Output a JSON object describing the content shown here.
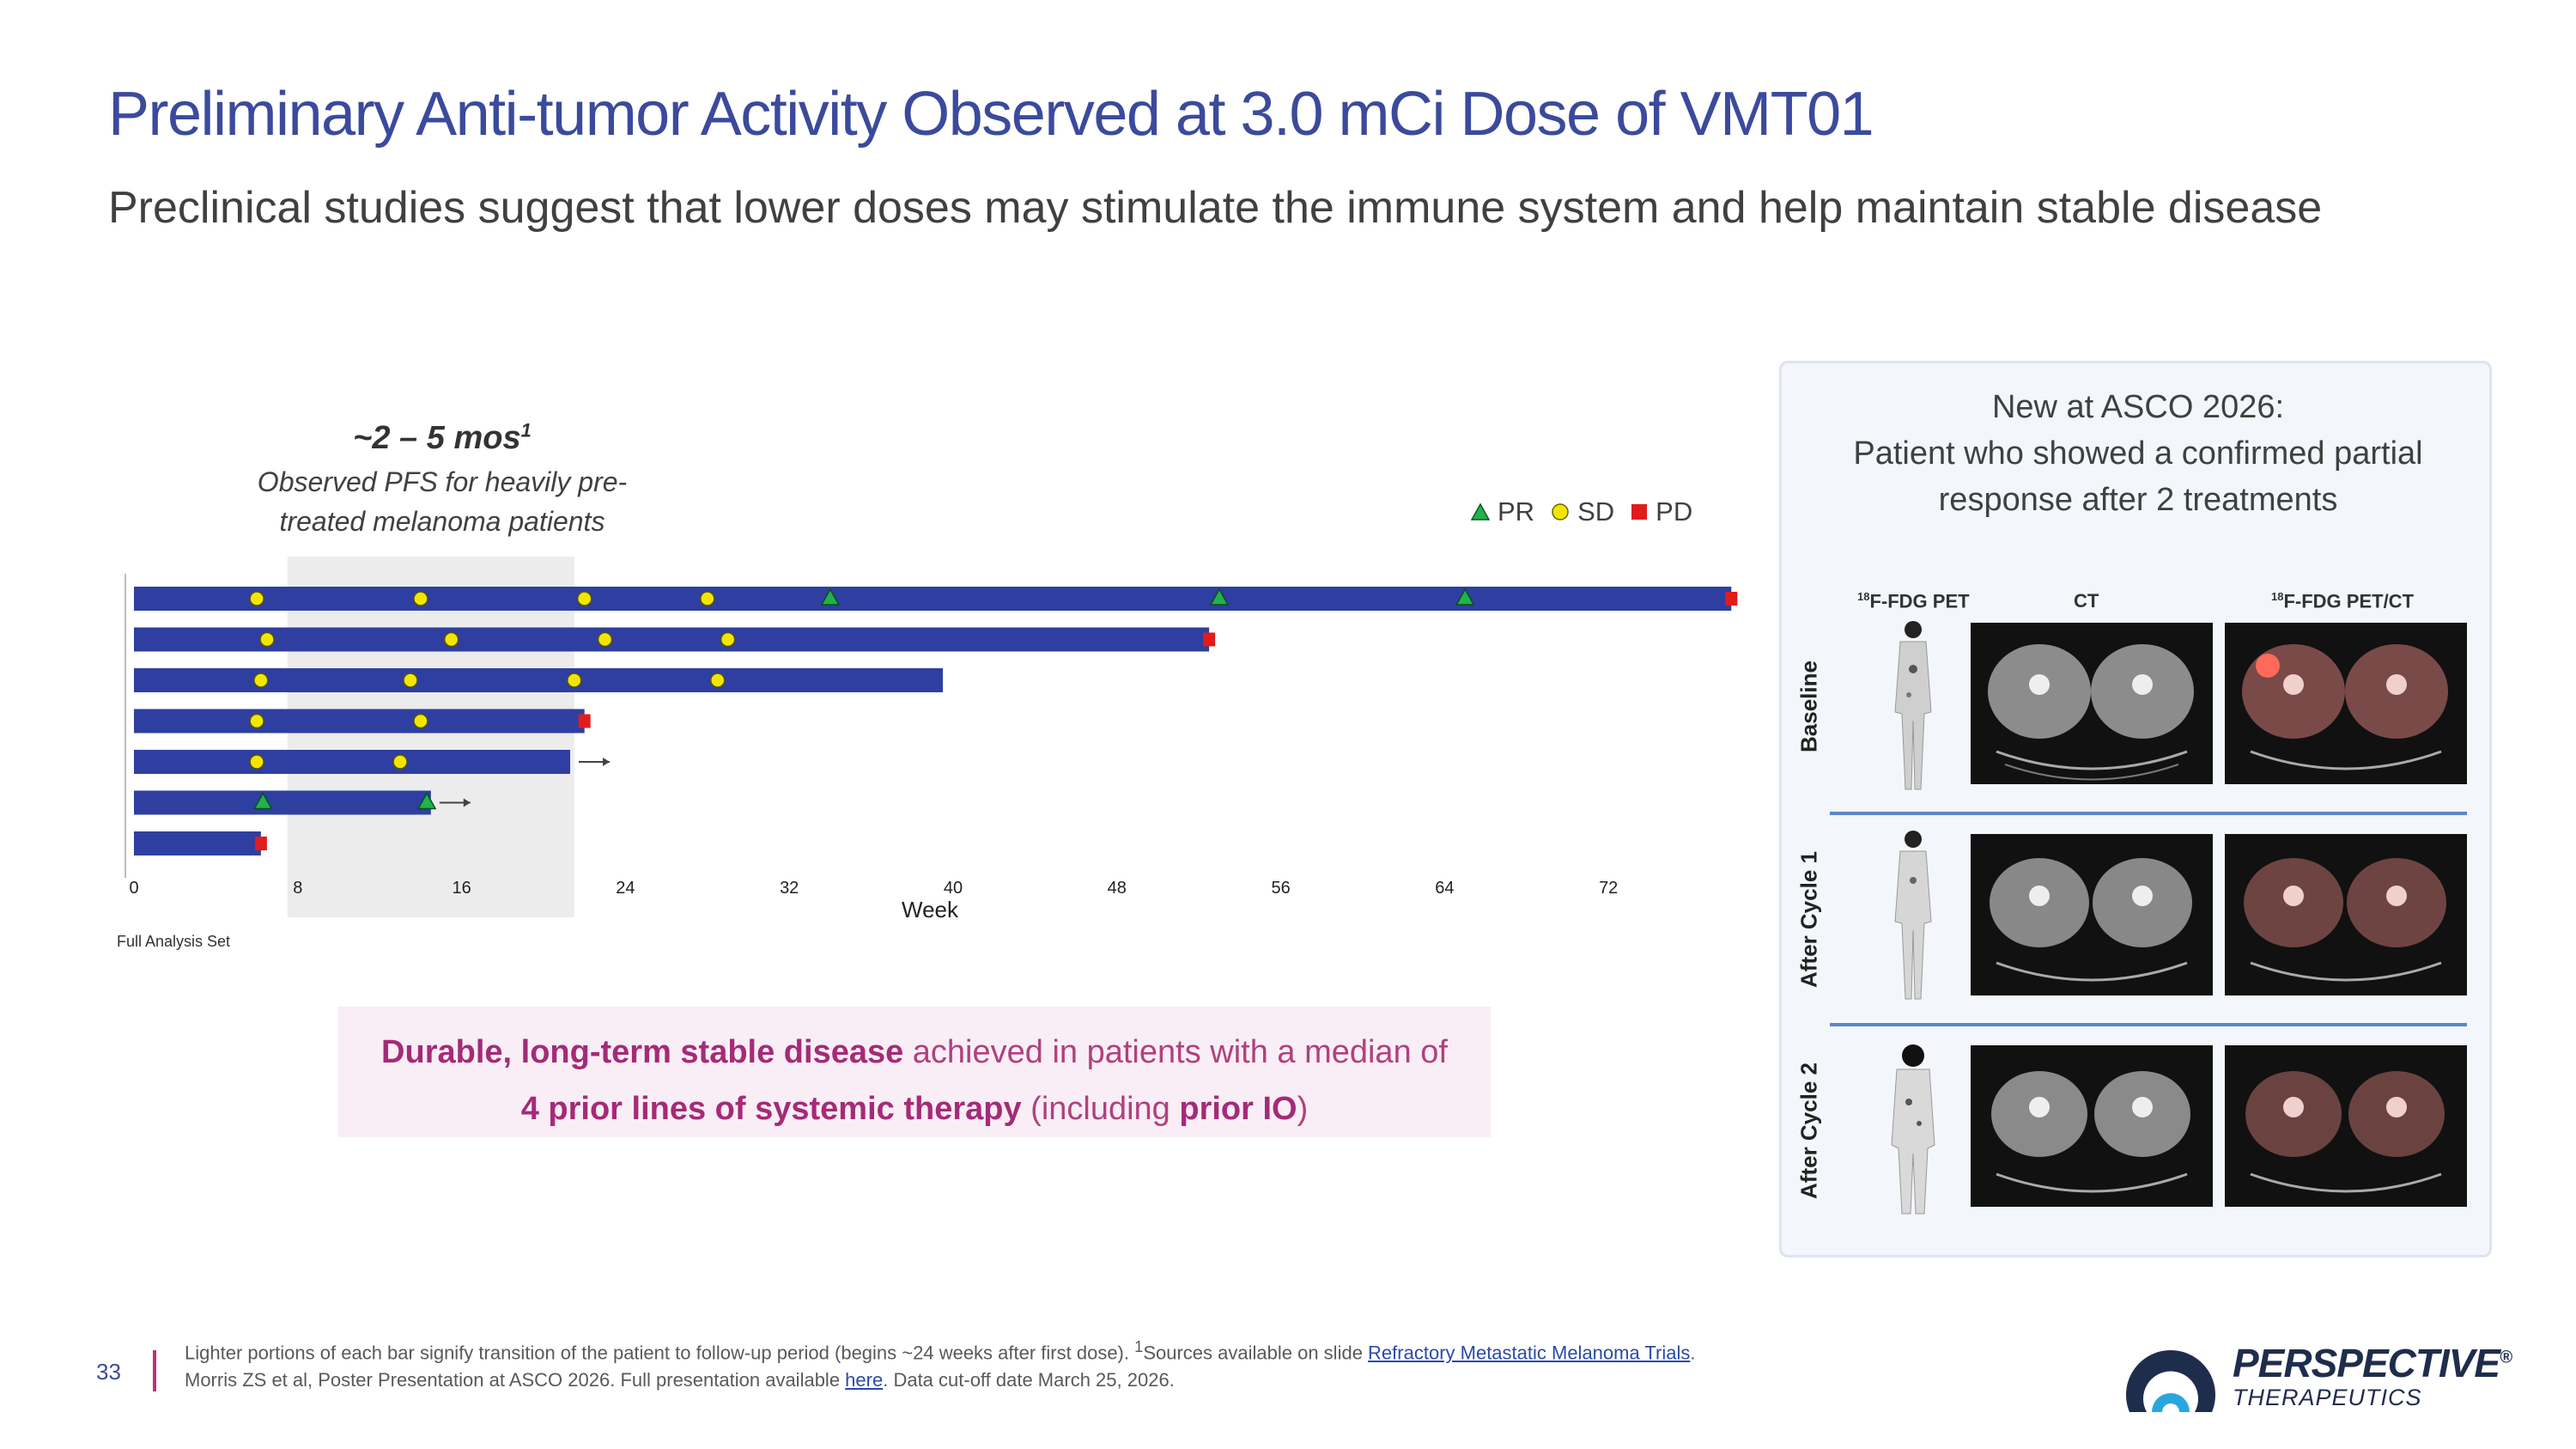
{
  "header": {
    "title": "Preliminary Anti-tumor Activity Observed at 3.0 mCi Dose of VMT01",
    "subtitle": "Preclinical studies suggest that lower doses may stimulate the immune system and help maintain stable disease"
  },
  "pfs_note": {
    "range": "~2 – 5 mos",
    "range_sup": "1",
    "line1": "Observed PFS for heavily pre-",
    "line2": "treated melanoma patients"
  },
  "legend": {
    "items": [
      {
        "label": "PR",
        "shape": "triangle",
        "color": "#22b14c"
      },
      {
        "label": "SD",
        "shape": "circle",
        "color": "#f2e600"
      },
      {
        "label": "PD",
        "shape": "square",
        "color": "#e21b1b"
      }
    ]
  },
  "chart_data": {
    "type": "swimmer",
    "xlabel": "Week",
    "x_ticks": [
      0,
      8,
      16,
      24,
      32,
      40,
      48,
      56,
      64,
      72
    ],
    "xlim": [
      0,
      78
    ],
    "pfs_band_weeks": [
      7.5,
      21.5
    ],
    "bar_color": "#2e3fa1",
    "patients": [
      {
        "end": 78,
        "arrow": false,
        "events": [
          {
            "t": 6,
            "type": "SD"
          },
          {
            "t": 14,
            "type": "SD"
          },
          {
            "t": 22,
            "type": "SD"
          },
          {
            "t": 28,
            "type": "SD"
          },
          {
            "t": 34,
            "type": "PR"
          },
          {
            "t": 53,
            "type": "PR"
          },
          {
            "t": 65,
            "type": "PR"
          },
          {
            "t": 78,
            "type": "PD"
          }
        ]
      },
      {
        "end": 52.5,
        "arrow": false,
        "events": [
          {
            "t": 6.5,
            "type": "SD"
          },
          {
            "t": 15.5,
            "type": "SD"
          },
          {
            "t": 23,
            "type": "SD"
          },
          {
            "t": 29,
            "type": "SD"
          },
          {
            "t": 52.5,
            "type": "PD"
          }
        ]
      },
      {
        "end": 39.5,
        "arrow": false,
        "events": [
          {
            "t": 6.2,
            "type": "SD"
          },
          {
            "t": 13.5,
            "type": "SD"
          },
          {
            "t": 21.5,
            "type": "SD"
          },
          {
            "t": 28.5,
            "type": "SD"
          }
        ]
      },
      {
        "end": 22,
        "arrow": false,
        "events": [
          {
            "t": 6,
            "type": "SD"
          },
          {
            "t": 14,
            "type": "SD"
          },
          {
            "t": 22,
            "type": "PD"
          }
        ]
      },
      {
        "end": 21.3,
        "arrow": true,
        "events": [
          {
            "t": 6,
            "type": "SD"
          },
          {
            "t": 13,
            "type": "SD"
          }
        ]
      },
      {
        "end": 14.5,
        "arrow": true,
        "events": [
          {
            "t": 6.3,
            "type": "PR"
          },
          {
            "t": 14.3,
            "type": "PR"
          }
        ]
      },
      {
        "end": 6.2,
        "arrow": false,
        "events": [
          {
            "t": 6.2,
            "type": "PD"
          }
        ]
      }
    ]
  },
  "analysis_set_label": "Full Analysis Set",
  "callout": {
    "bold1": "Durable, long-term stable disease",
    "text1": " achieved in patients with a median of",
    "bold2": "4 prior lines of systemic therapy",
    "text2": " (including ",
    "bold3": "prior IO",
    "text3": ")"
  },
  "panel": {
    "title_line1": "New at ASCO 2026:",
    "title_line2": "Patient who showed a confirmed partial",
    "title_line3": "response after 2 treatments",
    "col1_sup": "18",
    "col1": "F-FDG PET",
    "col2": "CT",
    "col3_sup": "18",
    "col3": "F-FDG PET/CT",
    "rows": [
      "Baseline",
      "After Cycle 1",
      "After Cycle 2"
    ]
  },
  "footer": {
    "page": "33",
    "line1_a": "Lighter portions of each bar signify transition of the patient to follow-up period (begins ~24 weeks after first dose). ",
    "line1_sup": "1",
    "line1_b": "Sources available on slide ",
    "line1_link": "Refractory Metastatic Melanoma Trials",
    "line1_c": ".",
    "line2_a": "Morris ZS et al, Poster Presentation at ASCO 2026. Full presentation available ",
    "line2_link": "here",
    "line2_b": ". Data cut-off date March 25, 2026."
  },
  "logo": {
    "name": "PERSPECTIVE",
    "reg": "®",
    "sub": "THERAPEUTICS",
    "color": "#1f2d4d",
    "accent": "#2aa6de"
  }
}
